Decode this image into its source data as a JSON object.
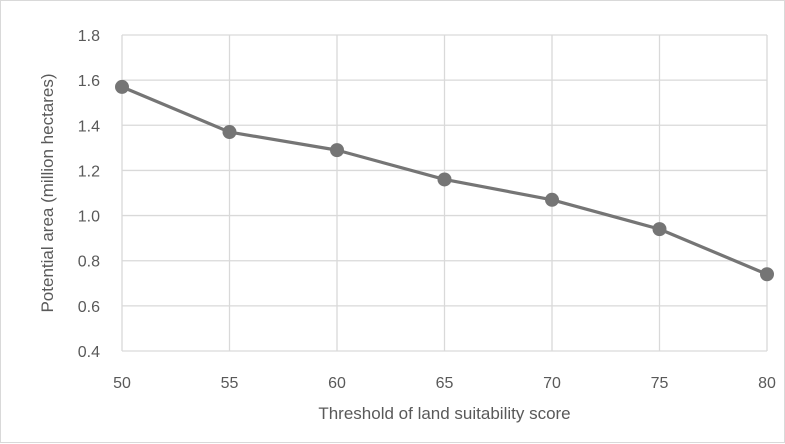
{
  "chart_data": {
    "type": "line",
    "title": "",
    "xlabel": "Threshold of land suitability score",
    "ylabel": "Potential area (million hectares)",
    "x": [
      50,
      55,
      60,
      65,
      70,
      75,
      80
    ],
    "series": [
      {
        "values": [
          1.57,
          1.37,
          1.29,
          1.16,
          1.07,
          0.94,
          0.74
        ],
        "color": "#757575"
      }
    ],
    "xlim": [
      50,
      80
    ],
    "ylim": [
      0.4,
      1.8
    ],
    "x_ticks": [
      50,
      55,
      60,
      65,
      70,
      75,
      80
    ],
    "x_tick_labels": [
      "50",
      "55",
      "60",
      "65",
      "70",
      "75",
      "80"
    ],
    "y_ticks": [
      0.4,
      0.6,
      0.8,
      1.0,
      1.2,
      1.4,
      1.6,
      1.8
    ],
    "y_tick_labels": [
      "0.4",
      "0.6",
      "0.8",
      "1.0",
      "1.2",
      "1.4",
      "1.6",
      "1.8"
    ],
    "grid": {
      "horizontal": true,
      "vertical": true,
      "color": "#d9d9d9"
    },
    "legend": "none"
  }
}
